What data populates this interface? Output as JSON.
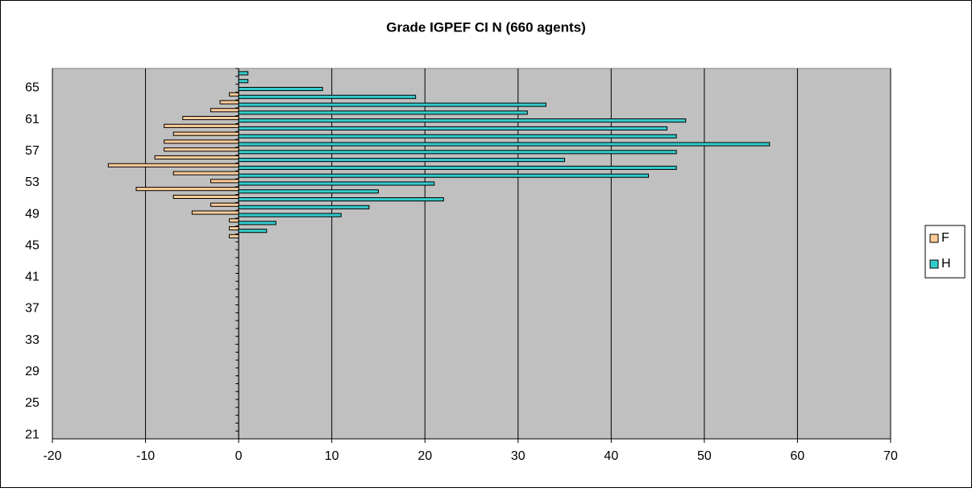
{
  "chart_data": {
    "type": "bar",
    "orientation": "horizontal",
    "title": "Grade IGPEF CI N (660 agents)",
    "categories": [
      21,
      null,
      null,
      null,
      25,
      null,
      null,
      null,
      29,
      null,
      null,
      null,
      33,
      null,
      null,
      null,
      37,
      null,
      null,
      null,
      41,
      null,
      null,
      null,
      45,
      null,
      null,
      null,
      49,
      null,
      null,
      null,
      53,
      null,
      null,
      null,
      57,
      null,
      null,
      null,
      61,
      null,
      null,
      null,
      65,
      null,
      null
    ],
    "series": [
      {
        "name": "F",
        "color": "#ffcc99",
        "values": [
          0,
          0,
          0,
          0,
          0,
          0,
          0,
          0,
          0,
          0,
          0,
          0,
          0,
          0,
          0,
          0,
          0,
          0,
          0,
          0,
          0,
          0,
          0,
          0,
          0,
          -1,
          -1,
          -1,
          -5,
          -3,
          -7,
          -11,
          -3,
          -7,
          -14,
          -9,
          -8,
          -8,
          -7,
          -8,
          -6,
          -3,
          -2,
          -1,
          0,
          0,
          0
        ]
      },
      {
        "name": "H",
        "color": "#33cccc",
        "values": [
          0,
          0,
          0,
          0,
          0,
          0,
          0,
          0,
          0,
          0,
          0,
          0,
          0,
          0,
          0,
          0,
          0,
          0,
          0,
          0,
          0,
          0,
          0,
          0,
          0,
          0,
          3,
          4,
          11,
          14,
          22,
          15,
          21,
          44,
          47,
          35,
          47,
          57,
          47,
          46,
          48,
          31,
          33,
          19,
          9,
          1,
          1
        ]
      }
    ],
    "xlim": [
      -20,
      70
    ],
    "xticks": [
      -20,
      -10,
      0,
      10,
      20,
      30,
      40,
      50,
      60,
      70
    ],
    "grid": true,
    "legend": "right"
  }
}
